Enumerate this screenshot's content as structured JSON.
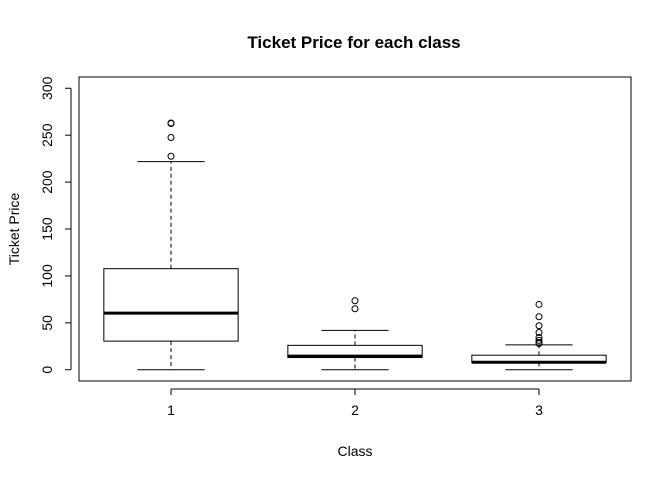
{
  "chart_data": {
    "type": "box",
    "title": "Ticket Price for each class",
    "xlabel": "Class",
    "ylabel": "Ticket Price",
    "categories": [
      "1",
      "2",
      "3"
    ],
    "ylim": [
      -12,
      312
    ],
    "yticks": [
      0,
      50,
      100,
      150,
      200,
      250,
      300
    ],
    "boxes": [
      {
        "category": "1",
        "min": 0,
        "q1": 30.5,
        "median": 60.3,
        "q3": 107.7,
        "max": 221.8,
        "outliers": [
          227.5,
          247.5,
          262.4,
          263
        ]
      },
      {
        "category": "2",
        "min": 0,
        "q1": 13,
        "median": 14.5,
        "q3": 26,
        "max": 42,
        "outliers": [
          65,
          73.5
        ]
      },
      {
        "category": "3",
        "min": 0,
        "q1": 7.75,
        "median": 8.05,
        "q3": 15.5,
        "max": 26.5,
        "outliers": [
          27.9,
          29.1,
          31.3,
          34.4,
          39.7,
          46.9,
          56.5,
          69.6
        ]
      }
    ],
    "grid": false,
    "legend": "none"
  }
}
